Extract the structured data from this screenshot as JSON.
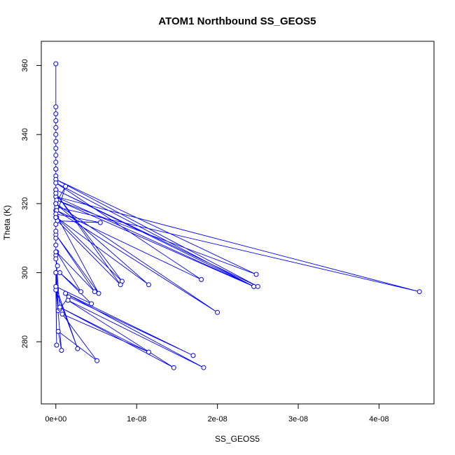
{
  "chart_data": {
    "type": "line",
    "title": "ATOM1 Northbound SS_GEOS5",
    "xlabel": "SS_GEOS5",
    "ylabel": "Theta (K)",
    "xlim": [
      -1.8e-09,
      4.68e-08
    ],
    "ylim": [
      262,
      367
    ],
    "xticks": [
      0,
      1e-08,
      2e-08,
      3e-08,
      4e-08
    ],
    "xtick_labels": [
      "0e+00",
      "1e-08",
      "2e-08",
      "3e-08",
      "4e-08"
    ],
    "yticks": [
      280,
      300,
      320,
      340,
      360
    ],
    "ytick_labels": [
      "280",
      "300",
      "320",
      "340",
      "360"
    ],
    "grid": false,
    "legend": "none",
    "series_color": "#0000ff",
    "series": [
      {
        "x": [
          0,
          0,
          0,
          0,
          0,
          0,
          0,
          0,
          0,
          0,
          0,
          0,
          0,
          0,
          0,
          0,
          0,
          0,
          1e-10,
          4.5e-08,
          0,
          2.45e-08,
          0,
          2.5e-08,
          0,
          2.48e-08,
          1e-10,
          2.45e-08,
          0,
          1.8e-08,
          1e-10,
          2e-08,
          0,
          1.15e-08,
          1e-10,
          8.2e-09,
          0,
          8e-09,
          2e-10,
          5.5e-09,
          0,
          5.3e-09,
          0,
          4.8e-09,
          1e-10,
          3.1e-09,
          5e-10,
          4.4e-09,
          0,
          2.7e-09,
          0,
          1e-10,
          0,
          3e-10,
          0,
          5e-10,
          1.6e-09,
          1.7e-08,
          1.2e-09,
          1.83e-08,
          1.5e-09,
          1.46e-08,
          5e-10,
          1.15e-08,
          8e-10,
          5.1e-09,
          3e-10,
          7e-10,
          0,
          0,
          2e-10,
          0,
          0,
          0,
          0,
          0,
          0,
          0,
          1.2e-09,
          0,
          0
        ],
        "y": [
          360.5,
          348,
          346,
          344,
          342,
          340,
          338,
          336,
          334,
          332,
          330,
          328,
          326,
          324,
          322,
          320,
          318,
          316,
          319,
          294.5,
          322,
          296,
          324,
          296,
          327,
          299.5,
          321,
          296,
          326,
          298,
          318,
          288.5,
          320,
          296.5,
          316,
          297.5,
          323,
          296.5,
          315,
          314.5,
          317,
          294,
          311,
          294.5,
          306,
          294.5,
          300,
          291,
          296,
          278,
          295,
          279,
          300,
          289,
          305,
          289.5,
          293,
          276,
          294,
          272.5,
          292,
          272.5,
          290,
          277,
          288,
          274.5,
          283,
          277.5,
          296,
          300,
          302,
          304,
          306,
          308,
          310,
          312,
          314,
          316,
          325,
          320,
          330
        ]
      }
    ]
  }
}
